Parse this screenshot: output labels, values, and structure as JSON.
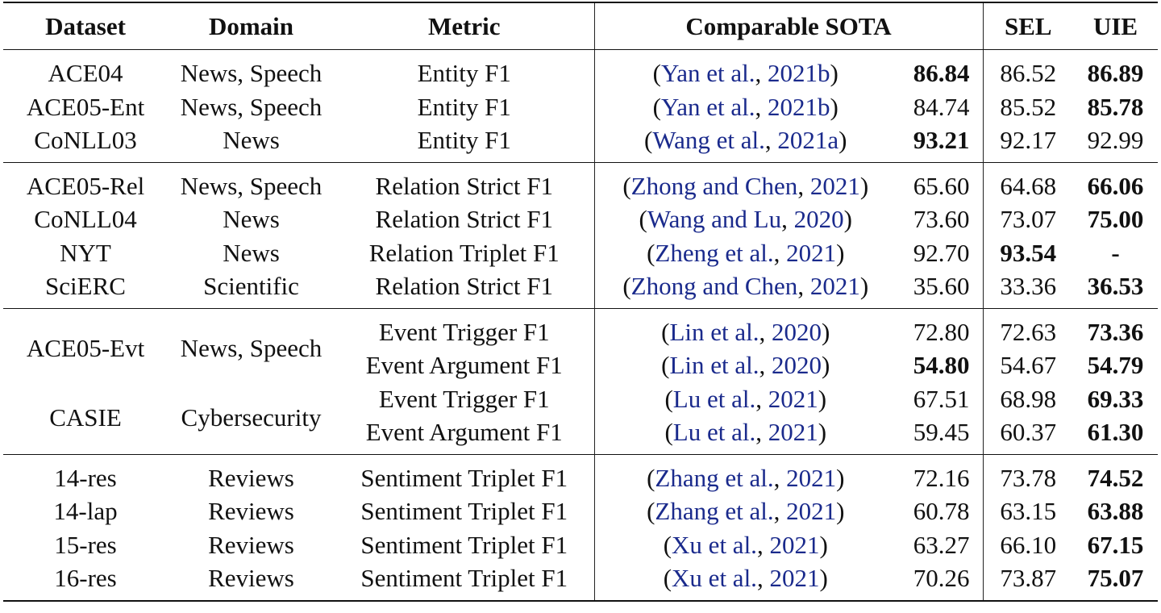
{
  "headers": {
    "dataset": "Dataset",
    "domain": "Domain",
    "metric": "Metric",
    "sota": "Comparable SOTA",
    "sel": "SEL",
    "uie": "UIE"
  },
  "groups": [
    {
      "rows": [
        {
          "dataset": "ACE04",
          "domain": "News, Speech",
          "metric": "Entity F1",
          "ref_name": "Yan et al.",
          "ref_year": "2021b",
          "sota": "86.84",
          "sota_bold": true,
          "sel": "86.52",
          "sel_bold": false,
          "uie": "86.89",
          "uie_bold": true
        },
        {
          "dataset": "ACE05-Ent",
          "domain": "News, Speech",
          "metric": "Entity F1",
          "ref_name": "Yan et al.",
          "ref_year": "2021b",
          "sota": "84.74",
          "sota_bold": false,
          "sel": "85.52",
          "sel_bold": false,
          "uie": "85.78",
          "uie_bold": true
        },
        {
          "dataset": "CoNLL03",
          "domain": "News",
          "metric": "Entity F1",
          "ref_name": "Wang et al.",
          "ref_year": "2021a",
          "sota": "93.21",
          "sota_bold": true,
          "sel": "92.17",
          "sel_bold": false,
          "uie": "92.99",
          "uie_bold": false
        }
      ]
    },
    {
      "rows": [
        {
          "dataset": "ACE05-Rel",
          "domain": "News, Speech",
          "metric": "Relation Strict F1",
          "ref_name": "Zhong and Chen",
          "ref_year": "2021",
          "sota": "65.60",
          "sota_bold": false,
          "sel": "64.68",
          "sel_bold": false,
          "uie": "66.06",
          "uie_bold": true
        },
        {
          "dataset": "CoNLL04",
          "domain": "News",
          "metric": "Relation Strict F1",
          "ref_name": "Wang and Lu",
          "ref_year": "2020",
          "sota": "73.60",
          "sota_bold": false,
          "sel": "73.07",
          "sel_bold": false,
          "uie": "75.00",
          "uie_bold": true
        },
        {
          "dataset": "NYT",
          "domain": "News",
          "metric": "Relation Triplet F1",
          "ref_name": "Zheng et al.",
          "ref_year": "2021",
          "sota": "92.70",
          "sota_bold": false,
          "sel": "93.54",
          "sel_bold": true,
          "uie": "-",
          "uie_bold": true
        },
        {
          "dataset": "SciERC",
          "domain": "Scientific",
          "metric": "Relation Strict F1",
          "ref_name": "Zhong and Chen",
          "ref_year": "2021",
          "sota": "35.60",
          "sota_bold": false,
          "sel": "33.36",
          "sel_bold": false,
          "uie": "36.53",
          "uie_bold": true
        }
      ]
    },
    {
      "rows": [
        {
          "dataset": "ACE05-Evt",
          "domain": "News, Speech",
          "metric": "Event Trigger F1",
          "ref_name": "Lin et al.",
          "ref_year": "2020",
          "sota": "72.80",
          "sota_bold": false,
          "sel": "72.63",
          "sel_bold": false,
          "uie": "73.36",
          "uie_bold": true
        },
        {
          "dataset": "",
          "domain": "",
          "metric": "Event Argument F1",
          "ref_name": "Lin et al.",
          "ref_year": "2020",
          "sota": "54.80",
          "sota_bold": true,
          "sel": "54.67",
          "sel_bold": false,
          "uie": "54.79",
          "uie_bold": true
        },
        {
          "dataset": "CASIE",
          "domain": "Cybersecurity",
          "metric": "Event Trigger F1",
          "ref_name": "Lu et al.",
          "ref_year": "2021",
          "sota": "67.51",
          "sota_bold": false,
          "sel": "68.98",
          "sel_bold": false,
          "uie": "69.33",
          "uie_bold": true
        },
        {
          "dataset": "",
          "domain": "",
          "metric": "Event Argument F1",
          "ref_name": "Lu et al.",
          "ref_year": "2021",
          "sota": "59.45",
          "sota_bold": false,
          "sel": "60.37",
          "sel_bold": false,
          "uie": "61.30",
          "uie_bold": true
        }
      ]
    },
    {
      "rows": [
        {
          "dataset": "14-res",
          "domain": "Reviews",
          "metric": "Sentiment Triplet F1",
          "ref_name": "Zhang et al.",
          "ref_year": "2021",
          "sota": "72.16",
          "sota_bold": false,
          "sel": "73.78",
          "sel_bold": false,
          "uie": "74.52",
          "uie_bold": true
        },
        {
          "dataset": "14-lap",
          "domain": "Reviews",
          "metric": "Sentiment Triplet F1",
          "ref_name": "Zhang et al.",
          "ref_year": "2021",
          "sota": "60.78",
          "sota_bold": false,
          "sel": "63.15",
          "sel_bold": false,
          "uie": "63.88",
          "uie_bold": true
        },
        {
          "dataset": "15-res",
          "domain": "Reviews",
          "metric": "Sentiment Triplet F1",
          "ref_name": "Xu et al.",
          "ref_year": "2021",
          "sota": "63.27",
          "sota_bold": false,
          "sel": "66.10",
          "sel_bold": false,
          "uie": "67.15",
          "uie_bold": true
        },
        {
          "dataset": "16-res",
          "domain": "Reviews",
          "metric": "Sentiment Triplet F1",
          "ref_name": "Xu et al.",
          "ref_year": "2021",
          "sota": "70.26",
          "sota_bold": false,
          "sel": "73.87",
          "sel_bold": false,
          "uie": "75.07",
          "uie_bold": true
        }
      ]
    }
  ],
  "colors": {
    "citation": "#1a2a8c",
    "text": "#111111",
    "rule": "#111111"
  }
}
